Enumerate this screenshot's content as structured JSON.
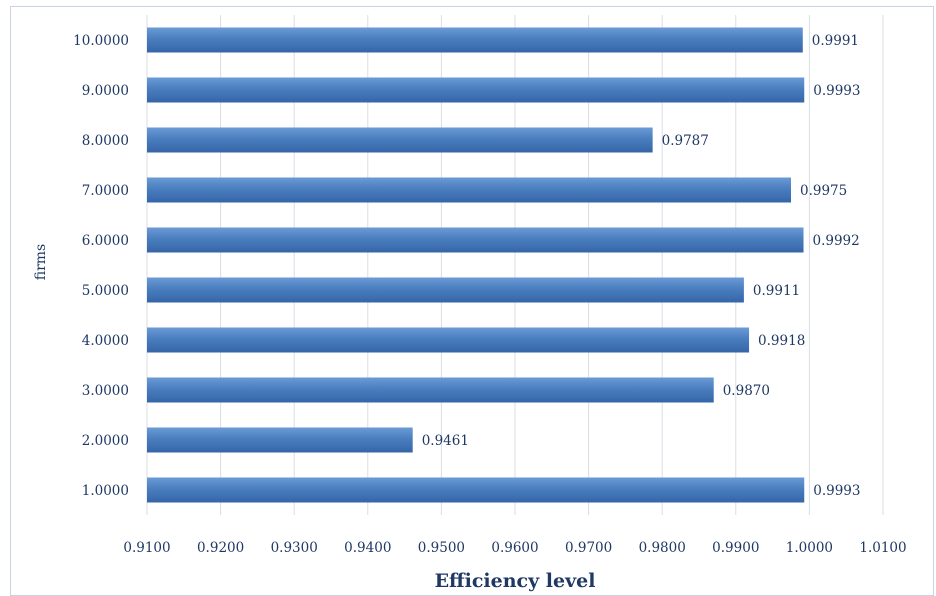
{
  "chart_data": {
    "type": "bar",
    "orientation": "horizontal",
    "categories": [
      "10.0000",
      "9.0000",
      "8.0000",
      "7.0000",
      "6.0000",
      "5.0000",
      "4.0000",
      "3.0000",
      "2.0000",
      "1.0000"
    ],
    "values": [
      0.9991,
      0.9993,
      0.9787,
      0.9975,
      0.9992,
      0.9911,
      0.9918,
      0.987,
      0.9461,
      0.9993
    ],
    "data_labels": [
      "0.9991",
      "0.9993",
      "0.9787",
      "0.9975",
      "0.9992",
      "0.9911",
      "0.9918",
      "0.9870",
      "0.9461",
      "0.9993"
    ],
    "xlabel": "Efficiency level",
    "ylabel": "firms",
    "xlim": [
      0.91,
      1.01
    ],
    "xticks": [
      "0.9100",
      "0.9200",
      "0.9300",
      "0.9400",
      "0.9500",
      "0.9600",
      "0.9700",
      "0.9800",
      "0.9900",
      "1.0000",
      "1.0100"
    ],
    "grid": "vertical",
    "bar_color": "#4a7ebf",
    "bar_color_dark": "#3565a8",
    "text_color": "#1f3864"
  }
}
